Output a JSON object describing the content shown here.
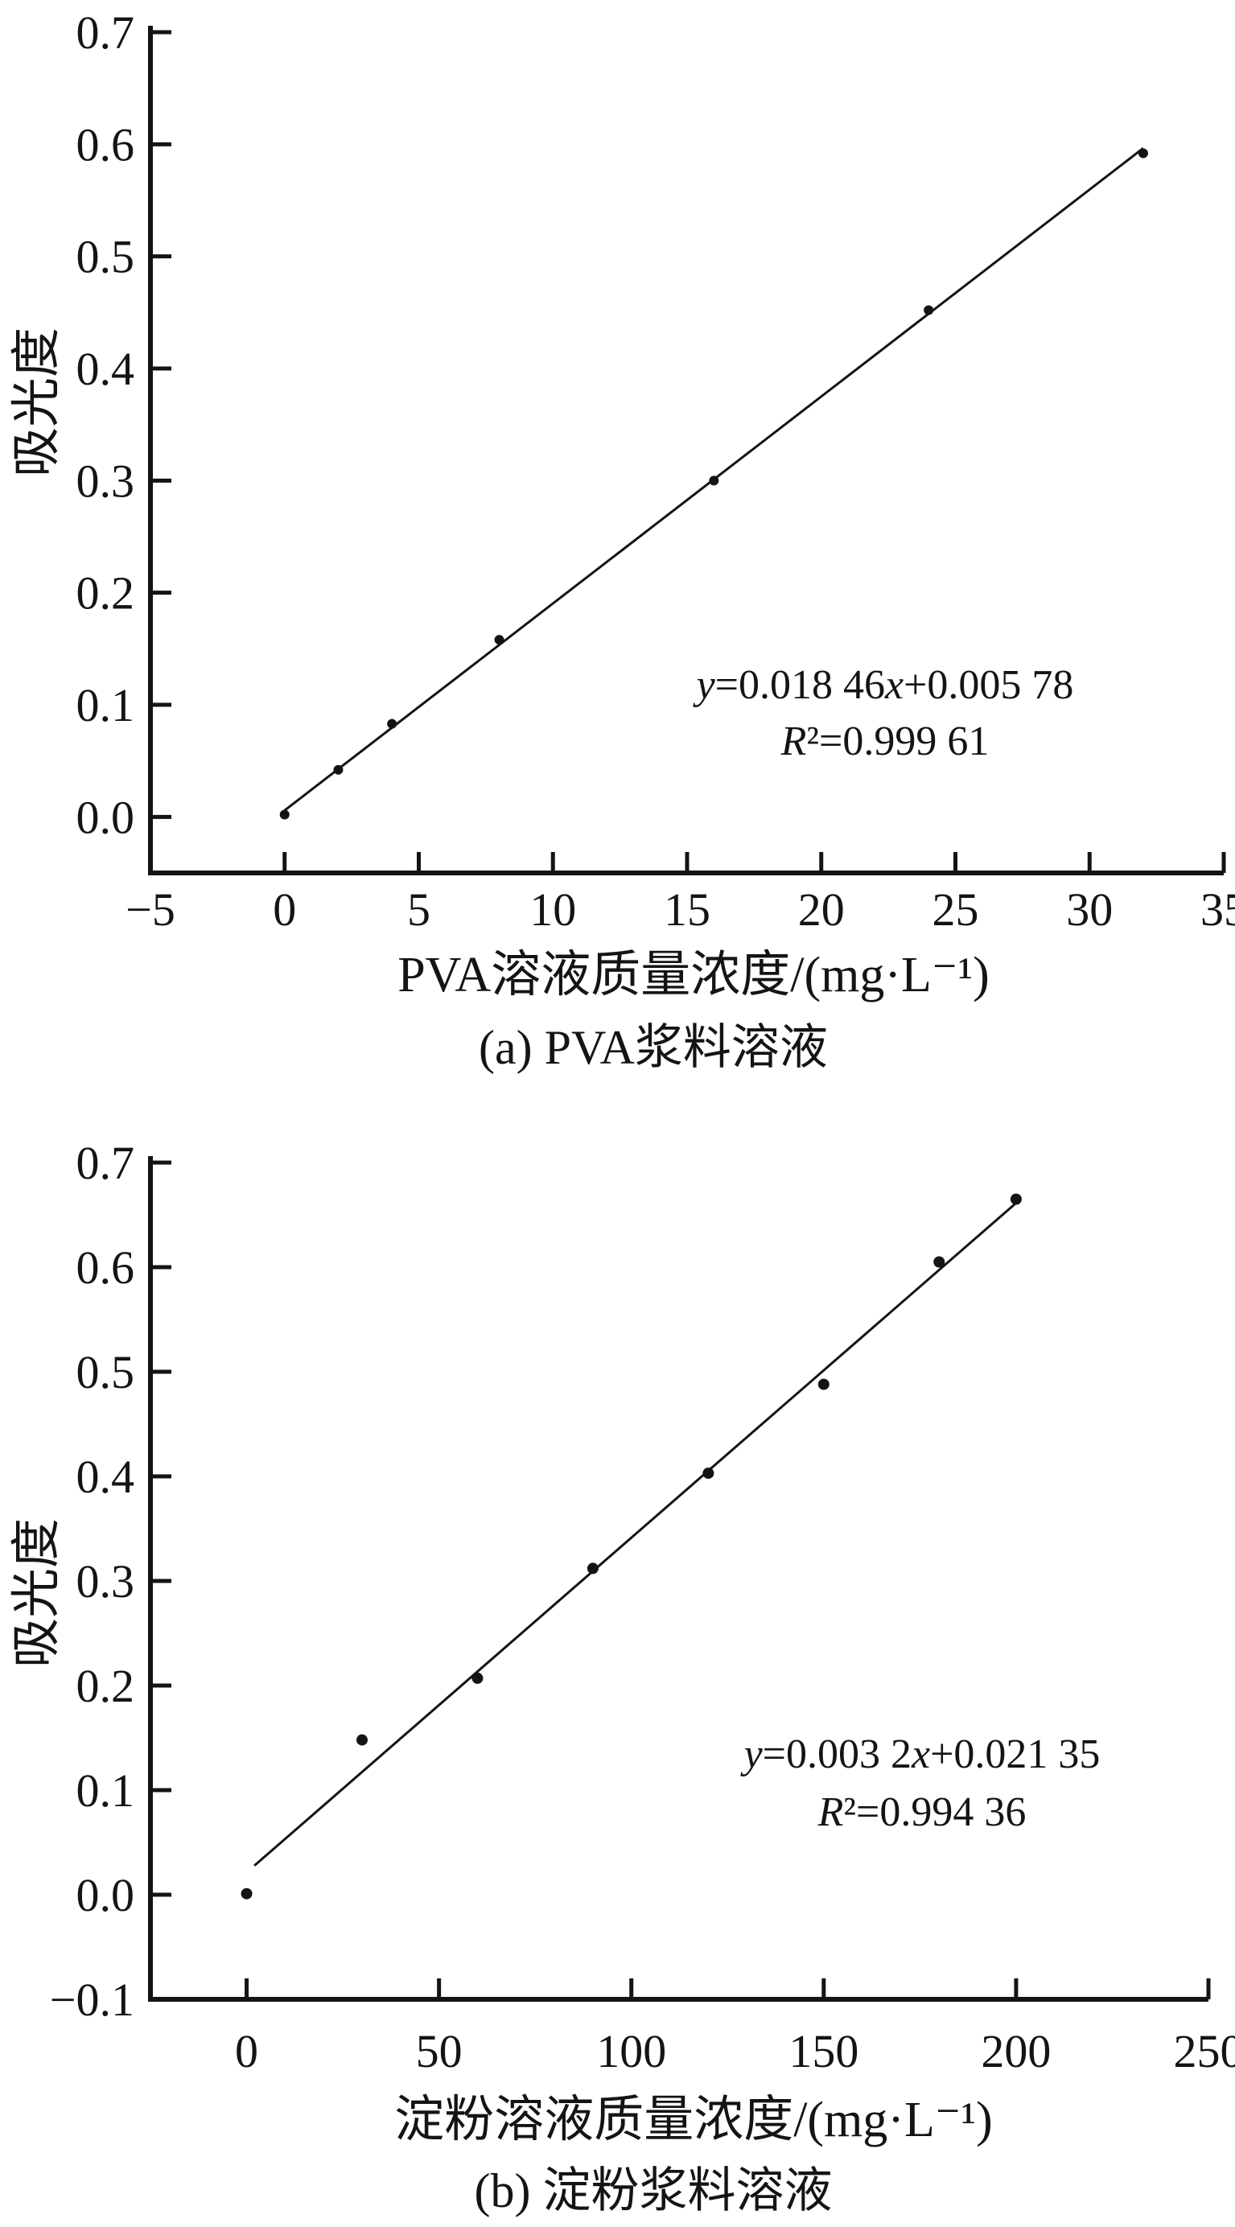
{
  "figure": {
    "background": "#ffffff",
    "ink": "#141414",
    "description_visible_text_only": true
  },
  "chart_data": [
    {
      "id": "a",
      "type": "scatter",
      "caption": "(a) PVA浆料溶液",
      "xlabel": "PVA溶液质量浓度/(mg·L⁻¹)",
      "ylabel": "吸光度",
      "xlim": [
        -5,
        35
      ],
      "ylim": [
        -0.05,
        0.7
      ],
      "grid": false,
      "legend": null,
      "xticks": [
        {
          "v": -5,
          "label": "−5"
        },
        {
          "v": 0,
          "label": "0"
        },
        {
          "v": 5,
          "label": "5"
        },
        {
          "v": 10,
          "label": "10"
        },
        {
          "v": 15,
          "label": "15"
        },
        {
          "v": 20,
          "label": "20"
        },
        {
          "v": 25,
          "label": "25"
        },
        {
          "v": 30,
          "label": "30"
        },
        {
          "v": 35,
          "label": "35"
        }
      ],
      "yticks": [
        {
          "v": 0.0,
          "label": "0.0"
        },
        {
          "v": 0.1,
          "label": "0.1"
        },
        {
          "v": 0.2,
          "label": "0.2"
        },
        {
          "v": 0.3,
          "label": "0.3"
        },
        {
          "v": 0.4,
          "label": "0.4"
        },
        {
          "v": 0.5,
          "label": "0.5"
        },
        {
          "v": 0.6,
          "label": "0.6"
        },
        {
          "v": 0.7,
          "label": "0.7"
        }
      ],
      "points": [
        [
          0,
          0.002
        ],
        [
          2,
          0.042
        ],
        [
          4,
          0.083
        ],
        [
          8,
          0.158
        ],
        [
          16,
          0.3
        ],
        [
          24,
          0.452
        ],
        [
          32,
          0.592
        ]
      ],
      "fit": {
        "slope": 0.01846,
        "intercept": 0.00578,
        "x_start": 0,
        "x_end": 32
      },
      "equation": {
        "line1": [
          {
            "text": "y",
            "italic": true
          },
          {
            "text": "=0.018 46"
          },
          {
            "text": "x",
            "italic": true
          },
          {
            "text": "+0.005 78"
          }
        ],
        "line2": [
          {
            "text": "R",
            "italic": true
          },
          {
            "text": "²=0.999 61"
          }
        ]
      }
    },
    {
      "id": "b",
      "type": "scatter",
      "caption": "(b) 淀粉浆料溶液",
      "xlabel": "淀粉溶液质量浓度/(mg·L⁻¹)",
      "ylabel": "吸光度",
      "xlim": [
        -25,
        250
      ],
      "ylim": [
        -0.1,
        0.7
      ],
      "grid": false,
      "legend": null,
      "xticks": [
        {
          "v": 0,
          "label": "0"
        },
        {
          "v": 50,
          "label": "50"
        },
        {
          "v": 100,
          "label": "100"
        },
        {
          "v": 150,
          "label": "150"
        },
        {
          "v": 200,
          "label": "200"
        },
        {
          "v": 250,
          "label": "250"
        }
      ],
      "yticks": [
        {
          "v": -0.1,
          "label": "−0.1"
        },
        {
          "v": 0.0,
          "label": "0.0"
        },
        {
          "v": 0.1,
          "label": "0.1"
        },
        {
          "v": 0.2,
          "label": "0.2"
        },
        {
          "v": 0.3,
          "label": "0.3"
        },
        {
          "v": 0.4,
          "label": "0.4"
        },
        {
          "v": 0.5,
          "label": "0.5"
        },
        {
          "v": 0.6,
          "label": "0.6"
        },
        {
          "v": 0.7,
          "label": "0.7"
        }
      ],
      "points": [
        [
          0,
          0.001
        ],
        [
          30,
          0.148
        ],
        [
          60,
          0.207
        ],
        [
          90,
          0.312
        ],
        [
          120,
          0.403
        ],
        [
          150,
          0.488
        ],
        [
          180,
          0.605
        ],
        [
          200,
          0.665
        ]
      ],
      "fit": {
        "slope": 0.0032,
        "intercept": 0.02135,
        "x_start": 2,
        "x_end": 200
      },
      "equation": {
        "line1": [
          {
            "text": "y",
            "italic": true
          },
          {
            "text": "=0.003 2"
          },
          {
            "text": "x",
            "italic": true
          },
          {
            "text": "+0.021 35"
          }
        ],
        "line2": [
          {
            "text": "R",
            "italic": true
          },
          {
            "text": "²=0.994 36"
          }
        ]
      }
    }
  ]
}
